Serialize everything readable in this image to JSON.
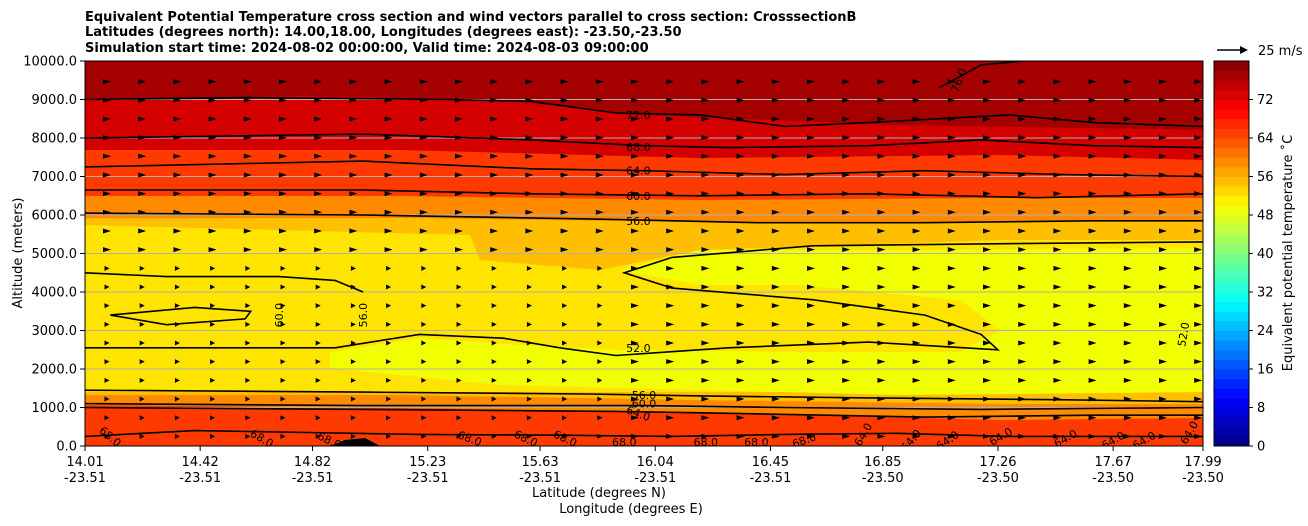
{
  "chart_data": {
    "type": "contourf",
    "title_lines": [
      "Equivalent Potential Temperature cross section and wind vectors parallel to cross section: CrosssectionB",
      "Latitudes (degrees north): 14.00,18.00, Longitudes (degrees east): -23.50,-23.50",
      "Simulation start time: 2024-08-02 00:00:00, Valid time: 2024-08-03 09:00:00"
    ],
    "ylabel": "Altitude (meters)",
    "xlabel_lines": [
      "Latitude (degrees N)",
      "Longitude (degrees E)"
    ],
    "ylim": [
      0,
      10000
    ],
    "xlim": [
      14.01,
      17.99
    ],
    "y_ticks": [
      {
        "value": 0,
        "label": "0.0"
      },
      {
        "value": 1000,
        "label": "1000.0"
      },
      {
        "value": 2000,
        "label": "2000.0"
      },
      {
        "value": 3000,
        "label": "3000.0"
      },
      {
        "value": 4000,
        "label": "4000.0"
      },
      {
        "value": 5000,
        "label": "5000.0"
      },
      {
        "value": 6000,
        "label": "6000.0"
      },
      {
        "value": 7000,
        "label": "7000.0"
      },
      {
        "value": 8000,
        "label": "8000.0"
      },
      {
        "value": 9000,
        "label": "9000.0"
      },
      {
        "value": 10000,
        "label": "10000.0"
      }
    ],
    "x_ticks": [
      {
        "value": 14.01,
        "lat": "14.01",
        "lon": "-23.51"
      },
      {
        "value": 14.42,
        "lat": "14.42",
        "lon": "-23.51"
      },
      {
        "value": 14.82,
        "lat": "14.82",
        "lon": "-23.51"
      },
      {
        "value": 15.23,
        "lat": "15.23",
        "lon": "-23.51"
      },
      {
        "value": 15.63,
        "lat": "15.63",
        "lon": "-23.51"
      },
      {
        "value": 16.04,
        "lat": "16.04",
        "lon": "-23.51"
      },
      {
        "value": 16.45,
        "lat": "16.45",
        "lon": "-23.51"
      },
      {
        "value": 16.85,
        "lat": "16.85",
        "lon": "-23.50"
      },
      {
        "value": 17.26,
        "lat": "17.26",
        "lon": "-23.50"
      },
      {
        "value": 17.67,
        "lat": "17.67",
        "lon": "-23.50"
      },
      {
        "value": 17.99,
        "lat": "17.99",
        "lon": "-23.50"
      }
    ],
    "grid_y": true,
    "colorbar": {
      "label": "Equivalent potential temperature ˚C",
      "range": [
        0,
        80
      ],
      "ticks": [
        0,
        8,
        16,
        24,
        32,
        40,
        48,
        56,
        64,
        72
      ],
      "colormap": "jet"
    },
    "quiver_key": "25 m/s",
    "contours": [
      {
        "level": "72.0",
        "points": [
          [
            14.01,
            9000
          ],
          [
            14.6,
            9050
          ],
          [
            15.3,
            9000
          ],
          [
            15.6,
            8950
          ],
          [
            15.9,
            8650
          ],
          [
            16.2,
            8600
          ],
          [
            16.5,
            8300
          ],
          [
            16.8,
            8400
          ],
          [
            17.3,
            8600
          ],
          [
            17.6,
            8400
          ],
          [
            17.99,
            8300
          ]
        ]
      },
      {
        "level": "68.0",
        "points": [
          [
            14.01,
            8000
          ],
          [
            15.0,
            8100
          ],
          [
            15.6,
            7950
          ],
          [
            16.0,
            7800
          ],
          [
            16.3,
            7750
          ],
          [
            16.8,
            7800
          ],
          [
            17.2,
            7950
          ],
          [
            17.6,
            7800
          ],
          [
            17.99,
            7750
          ]
        ]
      },
      {
        "level": "64.0",
        "points": [
          [
            14.01,
            7250
          ],
          [
            15.0,
            7400
          ],
          [
            15.6,
            7200
          ],
          [
            16.0,
            7150
          ],
          [
            16.5,
            7050
          ],
          [
            17.0,
            7150
          ],
          [
            17.5,
            7050
          ],
          [
            17.99,
            7000
          ]
        ]
      },
      {
        "level": "60.0",
        "points": [
          [
            14.01,
            6650
          ],
          [
            15.0,
            6650
          ],
          [
            15.6,
            6550
          ],
          [
            16.2,
            6500
          ],
          [
            16.8,
            6550
          ],
          [
            17.4,
            6450
          ],
          [
            17.99,
            6550
          ]
        ]
      },
      {
        "level": "56.0",
        "points": [
          [
            14.01,
            6050
          ],
          [
            15.0,
            6000
          ],
          [
            15.8,
            5900
          ],
          [
            16.4,
            5800
          ],
          [
            17.0,
            5800
          ],
          [
            17.6,
            5850
          ],
          [
            17.99,
            5850
          ]
        ]
      },
      {
        "level": "52.0",
        "points": [
          [
            17.99,
            5300
          ],
          [
            17.2,
            5250
          ],
          [
            16.6,
            5200
          ],
          [
            16.1,
            4900
          ],
          [
            15.93,
            4500
          ],
          [
            16.1,
            4100
          ],
          [
            16.6,
            3800
          ],
          [
            17.0,
            3400
          ],
          [
            17.2,
            2900
          ],
          [
            17.26,
            2500
          ],
          [
            16.8,
            2700
          ],
          [
            16.3,
            2550
          ],
          [
            15.9,
            2350
          ],
          [
            15.7,
            2550
          ],
          [
            15.5,
            2800
          ],
          [
            15.2,
            2900
          ],
          [
            14.9,
            2550
          ],
          [
            14.01,
            2550
          ]
        ]
      },
      {
        "level": "60.0",
        "points": [
          [
            14.1,
            3400
          ],
          [
            14.4,
            3600
          ],
          [
            14.6,
            3500
          ],
          [
            14.58,
            3300
          ],
          [
            14.3,
            3150
          ],
          [
            14.1,
            3400
          ]
        ]
      },
      {
        "level": "56.0",
        "points": [
          [
            14.01,
            4500
          ],
          [
            14.3,
            4400
          ],
          [
            14.7,
            4400
          ],
          [
            14.9,
            4300
          ],
          [
            15.0,
            4000
          ]
        ]
      },
      {
        "level": "56.0",
        "points": [
          [
            14.01,
            1450
          ],
          [
            15.0,
            1400
          ],
          [
            15.8,
            1350
          ],
          [
            16.2,
            1300
          ],
          [
            16.8,
            1250
          ],
          [
            17.5,
            1200
          ],
          [
            17.99,
            1150
          ]
        ]
      },
      {
        "level": "60.0",
        "points": [
          [
            14.01,
            1100
          ],
          [
            15.0,
            1050
          ],
          [
            16.0,
            1050
          ],
          [
            16.5,
            1000
          ],
          [
            17.2,
            950
          ],
          [
            17.99,
            1000
          ]
        ]
      },
      {
        "level": "64.0",
        "points": [
          [
            14.01,
            1000
          ],
          [
            15.0,
            950
          ],
          [
            15.9,
            900
          ],
          [
            16.3,
            850
          ],
          [
            17.0,
            750
          ],
          [
            17.6,
            800
          ],
          [
            17.99,
            800
          ]
        ]
      },
      {
        "level": "68.0",
        "points": [
          [
            14.01,
            250
          ],
          [
            14.4,
            400
          ],
          [
            14.8,
            350
          ],
          [
            15.2,
            300
          ],
          [
            15.7,
            280
          ],
          [
            16.1,
            250
          ],
          [
            16.5,
            300
          ],
          [
            16.9,
            330
          ],
          [
            17.3,
            250
          ],
          [
            17.99,
            250
          ]
        ]
      },
      {
        "level": "76.0",
        "points": [
          [
            17.05,
            9300
          ],
          [
            17.2,
            9900
          ],
          [
            17.35,
            10000
          ]
        ]
      }
    ],
    "contour_labels": [
      {
        "text": "72.0",
        "x": 15.98,
        "y": 8600
      },
      {
        "text": "68.0",
        "x": 15.98,
        "y": 7770
      },
      {
        "text": "64.0",
        "x": 15.98,
        "y": 7160
      },
      {
        "text": "60.0",
        "x": 15.98,
        "y": 6500
      },
      {
        "text": "56.0",
        "x": 15.98,
        "y": 5840
      },
      {
        "text": "52.0",
        "x": 15.98,
        "y": 2550
      },
      {
        "text": "60.0",
        "x": 14.7,
        "y": 3400,
        "rotate": -90
      },
      {
        "text": "56.0",
        "x": 15.0,
        "y": 3400,
        "rotate": -90
      },
      {
        "text": "56.0",
        "x": 16.0,
        "y": 1320
      },
      {
        "text": "60.0",
        "x": 16.0,
        "y": 1100
      },
      {
        "text": "64.0",
        "x": 15.98,
        "y": 850,
        "rotate": 20
      },
      {
        "text": "52.0",
        "x": 17.92,
        "y": 2900,
        "rotate": -80
      },
      {
        "text": "76.0",
        "x": 17.12,
        "y": 9500,
        "rotate": -70
      },
      {
        "text": "68.0",
        "x": 14.1,
        "y": 250,
        "rotate": 40
      },
      {
        "text": "68.0",
        "x": 14.64,
        "y": 200,
        "rotate": 30
      },
      {
        "text": "68.0",
        "x": 14.88,
        "y": 150,
        "rotate": 25
      },
      {
        "text": "68.0",
        "x": 15.38,
        "y": 200,
        "rotate": 20
      },
      {
        "text": "68.0",
        "x": 15.58,
        "y": 200,
        "rotate": 25
      },
      {
        "text": "68.0",
        "x": 15.72,
        "y": 200,
        "rotate": 25
      },
      {
        "text": "68.0",
        "x": 15.93,
        "y": 100
      },
      {
        "text": "68.0",
        "x": 16.22,
        "y": 100
      },
      {
        "text": "68.0",
        "x": 16.4,
        "y": 100
      },
      {
        "text": "68.0",
        "x": 16.57,
        "y": 150,
        "rotate": -20
      },
      {
        "text": "64.0",
        "x": 16.78,
        "y": 300,
        "rotate": -60
      },
      {
        "text": "64.0",
        "x": 16.95,
        "y": 150,
        "rotate": -50
      },
      {
        "text": "64.0",
        "x": 17.08,
        "y": 150,
        "rotate": -35
      },
      {
        "text": "64.0",
        "x": 17.27,
        "y": 250,
        "rotate": -30
      },
      {
        "text": "64.0",
        "x": 17.5,
        "y": 200,
        "rotate": -30
      },
      {
        "text": "64.0",
        "x": 17.67,
        "y": 150,
        "rotate": -30
      },
      {
        "text": "64.0",
        "x": 17.78,
        "y": 150,
        "rotate": -30
      },
      {
        "text": "64.0",
        "x": 17.94,
        "y": 350,
        "rotate": -60
      }
    ]
  },
  "colors": {
    "band_top": "#a50000",
    "band_upper": "#d40000",
    "band_mid_upper": "#ff3a00",
    "band_orange": "#ff8a00",
    "band_mid": "#ffbf00",
    "band_yellow": "#ffe400",
    "band_lime": "#f2ff00",
    "contour": "#000000",
    "grid": "#b0b0b0"
  }
}
